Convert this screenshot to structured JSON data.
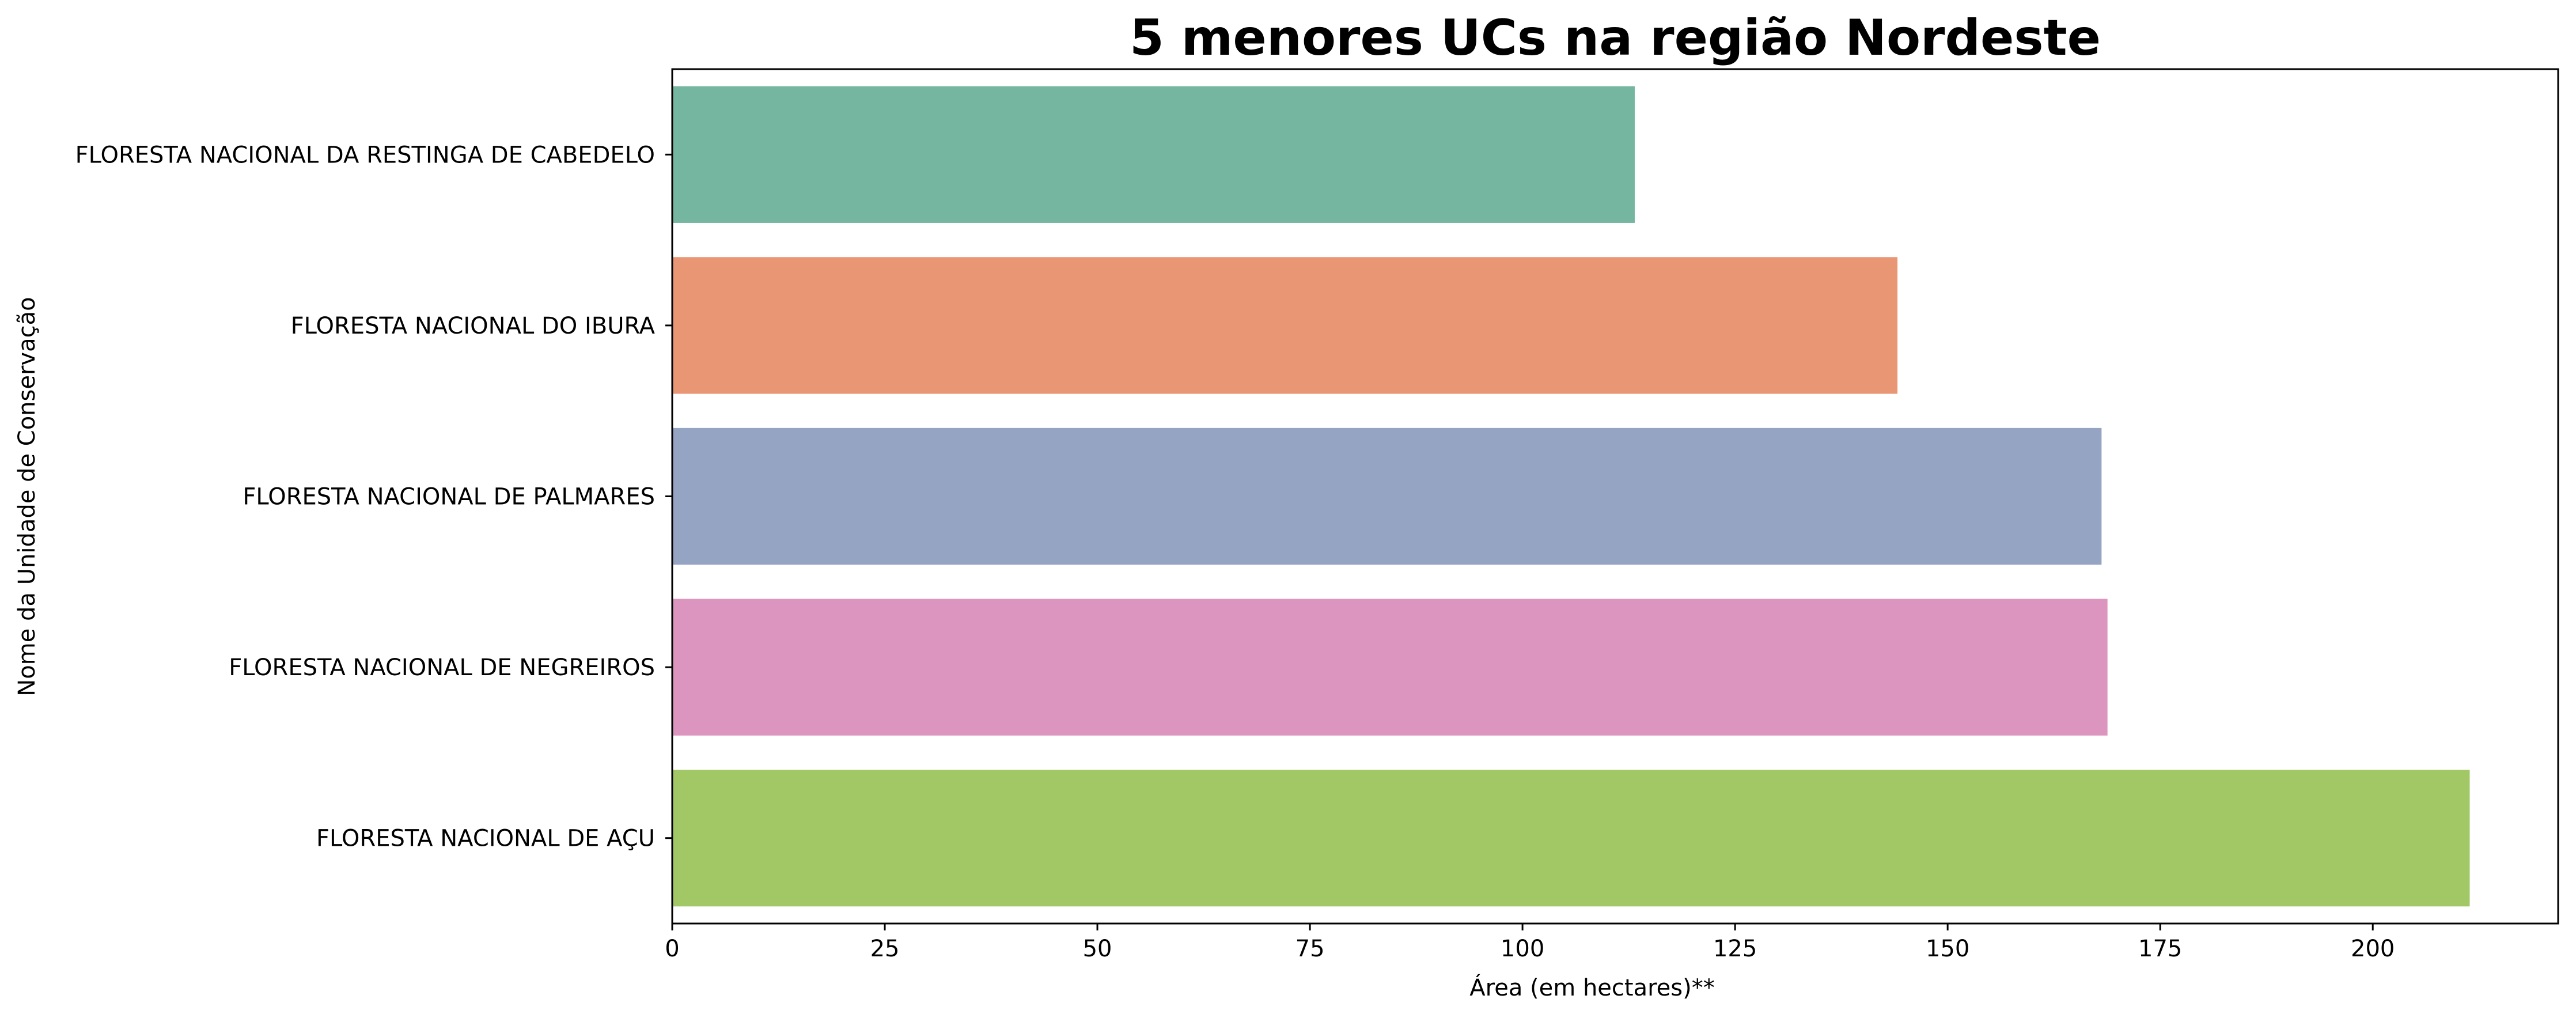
{
  "chart_data": {
    "type": "bar",
    "orientation": "horizontal",
    "title": "5 menores UCs na região Nordeste",
    "xlabel": "Área (em hectares)**",
    "ylabel": "Nome da Unidade de Conservação",
    "categories": [
      "FLORESTA NACIONAL DA RESTINGA DE CABEDELO",
      "FLORESTA NACIONAL DO IBURA",
      "FLORESTA NACIONAL DE PALMARES",
      "FLORESTA NACIONAL DE NEGREIROS",
      "FLORESTA NACIONAL DE AÇU"
    ],
    "values": [
      113.2,
      144.1,
      168.1,
      168.8,
      211.4
    ],
    "colors": [
      "#75b6a0",
      "#e99674",
      "#95a4c3",
      "#dc95bf",
      "#a2c866"
    ],
    "xlim": [
      0,
      221.8
    ],
    "xticks": [
      0,
      25,
      50,
      75,
      100,
      125,
      150,
      175,
      200
    ],
    "xtick_labels": [
      "0",
      "25",
      "50",
      "75",
      "100",
      "125",
      "150",
      "175",
      "200"
    ],
    "grid": false,
    "legend": "none"
  }
}
